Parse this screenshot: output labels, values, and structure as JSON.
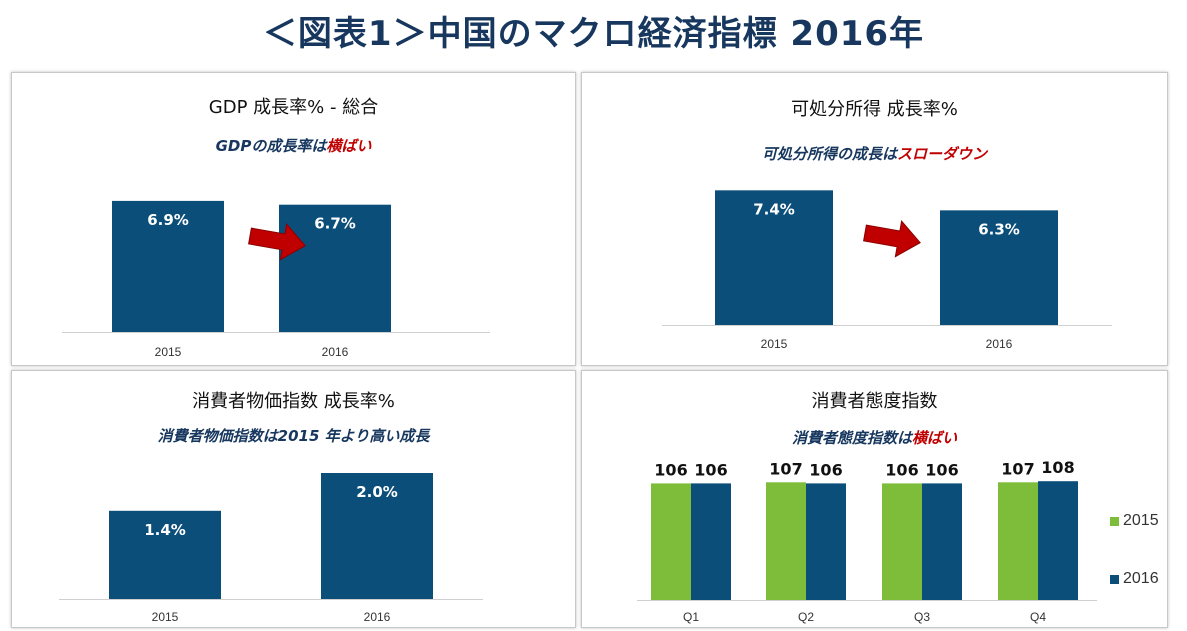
{
  "page": {
    "title": "＜図表1＞中国のマクロ経済指標  2016年"
  },
  "panels": {
    "gdp": {
      "title": "GDP 成長率% - 総合",
      "subtitle_main": "GDPの成長率は",
      "subtitle_highlight": "横ばい"
    },
    "income": {
      "title": "可処分所得  成長率%",
      "subtitle_main": "可処分所得の成長は",
      "subtitle_highlight": "スローダウン"
    },
    "cpi": {
      "title": "消費者物価指数  成長率%",
      "subtitle_main": "消費者物価指数は2015 年より高い成長",
      "subtitle_highlight": ""
    },
    "sentiment": {
      "title": "消費者態度指数",
      "subtitle_main": "消費者態度指数は",
      "subtitle_highlight": "横ばい"
    }
  },
  "colors": {
    "navy": "#0b4e7a",
    "green": "#7dbd3a",
    "arrow": "#c00000",
    "title": "#17375e",
    "highlight": "#c00000"
  },
  "chart_data": [
    {
      "id": "gdp",
      "type": "bar",
      "title": "GDP 成長率% - 総合",
      "categories": [
        "2015",
        "2016"
      ],
      "values": [
        6.9,
        6.7
      ],
      "labels": [
        "6.9%",
        "6.7%"
      ],
      "ylim": [
        0,
        8
      ],
      "annotation": "arrow-right-down"
    },
    {
      "id": "income",
      "type": "bar",
      "title": "可処分所得  成長率%",
      "categories": [
        "2015",
        "2016"
      ],
      "values": [
        7.4,
        6.3
      ],
      "labels": [
        "7.4%",
        "6.3%"
      ],
      "ylim": [
        0,
        8
      ],
      "annotation": "arrow-right-down"
    },
    {
      "id": "cpi",
      "type": "bar",
      "title": "消費者物価指数  成長率%",
      "categories": [
        "2015",
        "2016"
      ],
      "values": [
        1.4,
        2.0
      ],
      "labels": [
        "1.4%",
        "2.0%"
      ],
      "ylim": [
        0,
        2.4
      ]
    },
    {
      "id": "sentiment",
      "type": "bar",
      "title": "消費者態度指数",
      "categories": [
        "Q1",
        "Q2",
        "Q3",
        "Q4"
      ],
      "series": [
        {
          "name": "2015",
          "values": [
            106,
            107,
            106,
            107
          ],
          "color": "#7dbd3a"
        },
        {
          "name": "2016",
          "values": [
            106,
            106,
            106,
            108
          ],
          "color": "#0b4e7a"
        }
      ],
      "ylim": [
        0,
        120
      ],
      "legend": "right"
    }
  ]
}
